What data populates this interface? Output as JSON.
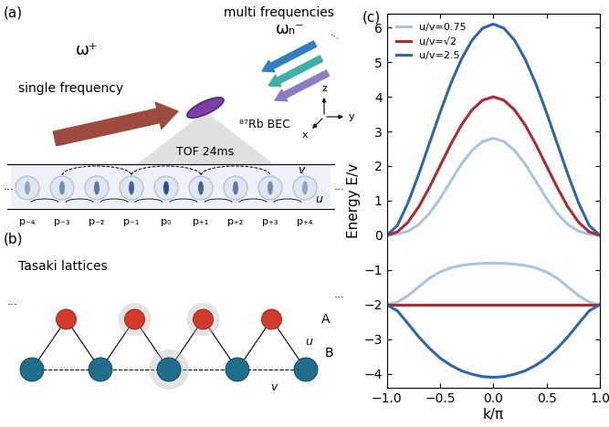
{
  "panel_a": {
    "label": "(a)",
    "single_frequency": {
      "text": "single frequency",
      "symbol": "ω⁺"
    },
    "multi_frequencies": {
      "text": "multi frequencies",
      "symbol": "ωₙ⁻"
    },
    "atoms": "⁸⁷Rb BEC",
    "axes": [
      "z",
      "x",
      "y"
    ],
    "tof": "TOF 24ms",
    "momentum_orders": [
      "p₋₄",
      "p₋₃",
      "p₋₂",
      "p₋₁",
      "p₀",
      "p₊₁",
      "p₊₂",
      "p₊₃",
      "p₊₄"
    ],
    "couplings": {
      "u": "u",
      "v": "v"
    },
    "ellipsis": "..."
  },
  "panel_b": {
    "label": "(b)",
    "title": "Tasaki lattices",
    "sites": [
      "A",
      "B"
    ],
    "couplings": {
      "u": "u",
      "v": "v"
    },
    "ellipsis": "..."
  },
  "chart_data": {
    "type": "line",
    "annotations": [
      "(c)"
    ],
    "x_label": "k/π",
    "y_label": "Energy E/v",
    "x": [
      -1.0,
      -0.9,
      -0.8,
      -0.7,
      -0.6,
      -0.5,
      -0.4,
      -0.3,
      -0.2,
      -0.1,
      0.0,
      0.1,
      0.2,
      0.3,
      0.4,
      0.5,
      0.6,
      0.7,
      0.8,
      0.9,
      1.0
    ],
    "series": [
      {
        "name": "u/v=0.75",
        "color": "#a9c4e0",
        "values": [
          0.0,
          0.03,
          0.12,
          0.31,
          0.63,
          1.06,
          1.56,
          2.05,
          2.45,
          2.71,
          2.8,
          2.71,
          2.45,
          2.05,
          1.56,
          1.06,
          0.63,
          0.31,
          0.12,
          0.03,
          0.0
        ]
      },
      {
        "color": "#a9c4e0",
        "values": [
          -2.0,
          -1.93,
          -1.74,
          -1.49,
          -1.24,
          -1.06,
          -0.94,
          -0.87,
          -0.83,
          -0.81,
          -0.8,
          -0.81,
          -0.83,
          -0.87,
          -0.94,
          -1.06,
          -1.24,
          -1.49,
          -1.74,
          -1.93,
          -2.0
        ]
      },
      {
        "name": "u/v=√2",
        "color": "#b1282e",
        "values": [
          0.0,
          0.1,
          0.38,
          0.82,
          1.38,
          2.0,
          2.62,
          3.18,
          3.62,
          3.9,
          4.0,
          3.9,
          3.62,
          3.18,
          2.62,
          2.0,
          1.38,
          0.82,
          0.38,
          0.1,
          0.0
        ]
      },
      {
        "color": "#b1282e",
        "values": [
          -2.0,
          -2.0,
          -2.0,
          -2.0,
          -2.0,
          -2.0,
          -2.0,
          -2.0,
          -2.0,
          -2.0,
          -2.0,
          -2.0,
          -2.0,
          -2.0,
          -2.0,
          -2.0,
          -2.0,
          -2.0,
          -2.0,
          -2.0,
          -2.0
        ]
      },
      {
        "name": "u/v=2.5",
        "color": "#2e66a8",
        "values": [
          0.0,
          0.28,
          0.94,
          1.76,
          2.65,
          3.54,
          4.37,
          5.08,
          5.63,
          5.98,
          6.1,
          5.98,
          5.63,
          5.08,
          4.37,
          3.54,
          2.65,
          1.76,
          0.94,
          0.28,
          0.0
        ]
      },
      {
        "color": "#2e66a8",
        "values": [
          -2.0,
          -2.18,
          -2.55,
          -2.93,
          -3.26,
          -3.54,
          -3.75,
          -3.91,
          -4.01,
          -4.08,
          -4.1,
          -4.08,
          -4.01,
          -3.91,
          -3.75,
          -3.54,
          -3.26,
          -2.93,
          -2.55,
          -2.18,
          -2.0
        ]
      }
    ],
    "xlim": [
      -1.0,
      1.0
    ],
    "ylim": [
      -4.4,
      6.4
    ],
    "xticks": [
      {
        "value": -1.0,
        "label": "−1.0"
      },
      {
        "value": -0.5,
        "label": "−0.5"
      },
      0.0,
      0.5,
      1.0
    ],
    "yticks": [
      {
        "value": -4,
        "label": "−4"
      },
      {
        "value": -3,
        "label": "−3"
      },
      {
        "value": -2,
        "label": "−2"
      },
      {
        "value": -1,
        "label": "−1"
      },
      0,
      1,
      2,
      3,
      4,
      5,
      6
    ],
    "legend": "upper left"
  }
}
